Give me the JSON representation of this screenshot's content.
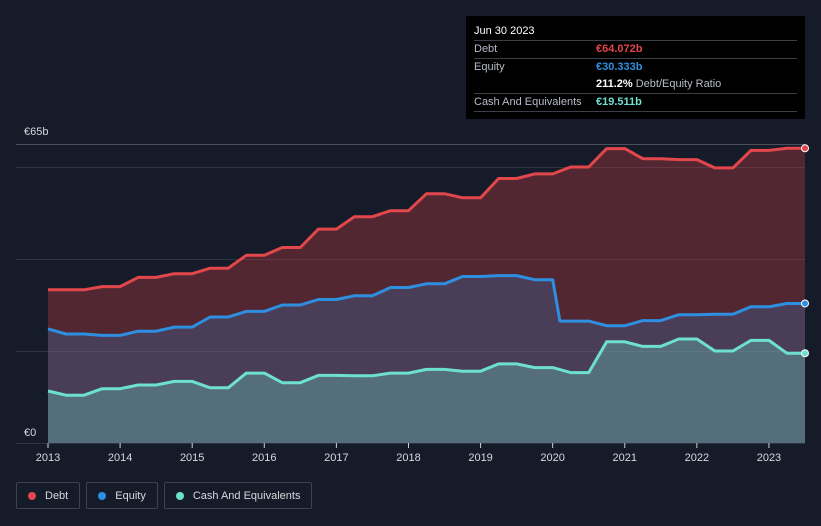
{
  "tooltip": {
    "date": "Jun 30 2023",
    "debt_label": "Debt",
    "debt_value": "€64.072b",
    "equity_label": "Equity",
    "equity_value": "€30.333b",
    "ratio_value": "211.2%",
    "ratio_label": "Debt/Equity Ratio",
    "cash_label": "Cash And Equivalents",
    "cash_value": "€19.511b"
  },
  "legend": {
    "debt": "Debt",
    "equity": "Equity",
    "cash": "Cash And Equivalents"
  },
  "colors": {
    "debt": "#e2474b",
    "equity": "#2e8fe0",
    "cash": "#6ee0d2",
    "background": "#151b28"
  },
  "chart_data": {
    "type": "area",
    "title": "",
    "xlabel": "",
    "ylabel": "",
    "y_top_label": "€65b",
    "y_bottom_label": "€0",
    "ylim": [
      0,
      65
    ],
    "xlim": [
      2013.0,
      2023.5
    ],
    "x_ticks": [
      "2013",
      "2014",
      "2015",
      "2016",
      "2017",
      "2018",
      "2019",
      "2020",
      "2021",
      "2022",
      "2023"
    ],
    "series": [
      {
        "name": "Debt",
        "x": [
          2013.0,
          2013.25,
          2013.5,
          2013.75,
          2014.0,
          2014.25,
          2014.5,
          2014.75,
          2015.0,
          2015.25,
          2015.5,
          2015.75,
          2016.0,
          2016.25,
          2016.5,
          2016.75,
          2017.0,
          2017.25,
          2017.5,
          2017.75,
          2018.0,
          2018.25,
          2018.5,
          2018.75,
          2019.0,
          2019.25,
          2019.5,
          2019.75,
          2020.0,
          2020.25,
          2020.5,
          2020.75,
          2021.0,
          2021.25,
          2021.5,
          2021.75,
          2022.0,
          2022.25,
          2022.5,
          2022.75,
          2023.0,
          2023.25,
          2023.5
        ],
        "values": [
          33.3,
          33.3,
          33.3,
          34.0,
          34.0,
          36.0,
          36.0,
          36.8,
          36.8,
          38.0,
          38.0,
          40.8,
          40.8,
          42.5,
          42.5,
          46.5,
          46.5,
          49.2,
          49.2,
          50.5,
          50.5,
          54.2,
          54.2,
          53.3,
          53.3,
          57.5,
          57.5,
          58.5,
          58.5,
          60.0,
          60.0,
          64.0,
          64.0,
          61.8,
          61.8,
          61.6,
          61.6,
          59.8,
          59.8,
          63.6,
          63.6,
          64.07,
          64.07
        ]
      },
      {
        "name": "Equity",
        "x": [
          2013.0,
          2013.25,
          2013.5,
          2013.75,
          2014.0,
          2014.25,
          2014.5,
          2014.75,
          2015.0,
          2015.25,
          2015.5,
          2015.75,
          2016.0,
          2016.25,
          2016.5,
          2016.75,
          2017.0,
          2017.25,
          2017.5,
          2017.75,
          2018.0,
          2018.25,
          2018.5,
          2018.75,
          2019.0,
          2019.25,
          2019.5,
          2019.75,
          2020.0,
          2020.1,
          2020.25,
          2020.5,
          2020.75,
          2021.0,
          2021.25,
          2021.5,
          2021.75,
          2022.0,
          2022.25,
          2022.5,
          2022.75,
          2023.0,
          2023.25,
          2023.5
        ],
        "values": [
          24.8,
          23.7,
          23.7,
          23.4,
          23.4,
          24.3,
          24.3,
          25.2,
          25.2,
          27.4,
          27.4,
          28.6,
          28.6,
          30.0,
          30.0,
          31.2,
          31.2,
          32.0,
          32.0,
          33.8,
          33.8,
          34.6,
          34.6,
          36.2,
          36.2,
          36.4,
          36.4,
          35.5,
          35.5,
          26.5,
          26.5,
          26.5,
          25.5,
          25.5,
          26.6,
          26.6,
          27.9,
          27.9,
          28.0,
          28.0,
          29.6,
          29.6,
          30.33,
          30.33
        ]
      },
      {
        "name": "Cash And Equivalents",
        "x": [
          2013.0,
          2013.25,
          2013.5,
          2013.75,
          2014.0,
          2014.25,
          2014.5,
          2014.75,
          2015.0,
          2015.25,
          2015.5,
          2015.75,
          2016.0,
          2016.25,
          2016.5,
          2016.75,
          2017.0,
          2017.25,
          2017.5,
          2017.75,
          2018.0,
          2018.25,
          2018.5,
          2018.75,
          2019.0,
          2019.25,
          2019.5,
          2019.75,
          2020.0,
          2020.25,
          2020.5,
          2020.75,
          2021.0,
          2021.25,
          2021.5,
          2021.75,
          2022.0,
          2022.25,
          2022.5,
          2022.75,
          2023.0,
          2023.25,
          2023.5
        ],
        "values": [
          11.3,
          10.4,
          10.4,
          11.8,
          11.8,
          12.6,
          12.6,
          13.4,
          13.4,
          12.0,
          12.0,
          15.2,
          15.2,
          13.1,
          13.1,
          14.7,
          14.7,
          14.6,
          14.6,
          15.2,
          15.2,
          16.0,
          16.0,
          15.6,
          15.6,
          17.2,
          17.2,
          16.4,
          16.4,
          15.3,
          15.3,
          22.0,
          22.0,
          21.0,
          21.0,
          22.6,
          22.6,
          20.0,
          20.0,
          22.3,
          22.3,
          19.51,
          19.51
        ]
      }
    ]
  }
}
